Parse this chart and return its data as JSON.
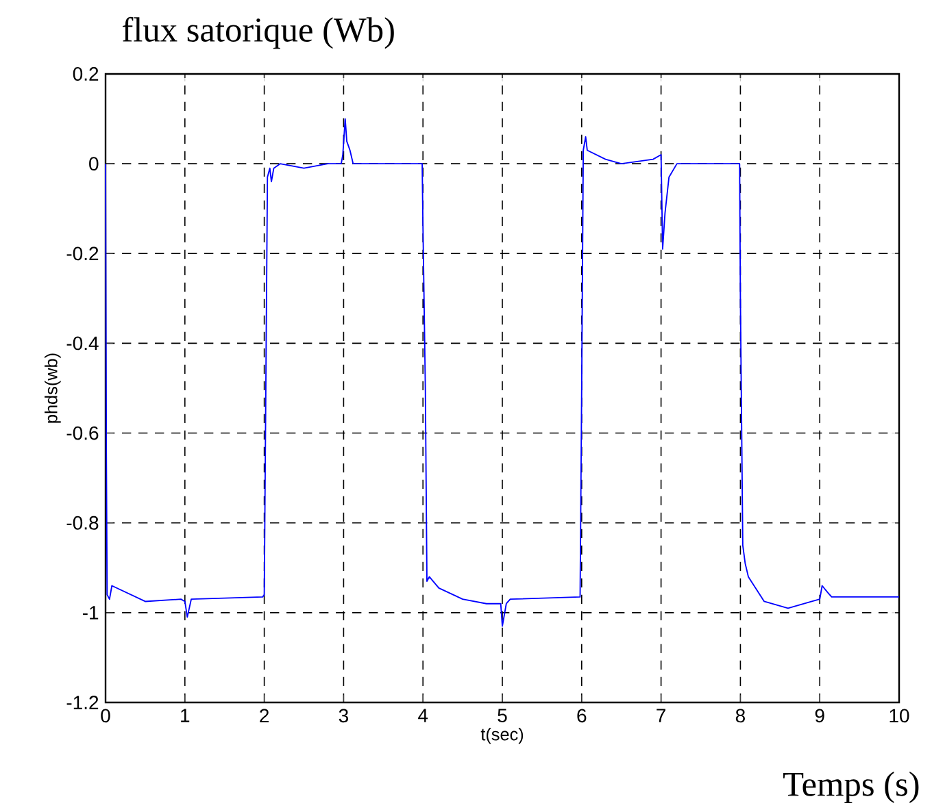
{
  "chart_data": {
    "type": "line",
    "title": "flux satorique (Wb)",
    "xlabel": "t(sec)",
    "ylabel": "phds(wb)",
    "annotations": [
      "Temps (s)"
    ],
    "xlim": [
      0,
      10
    ],
    "ylim": [
      -1.2,
      0.2
    ],
    "xticks": [
      0,
      1,
      2,
      3,
      4,
      5,
      6,
      7,
      8,
      9,
      10
    ],
    "yticks": [
      -1.2,
      -1,
      -0.8,
      -0.6,
      -0.4,
      -0.2,
      0,
      0.2
    ],
    "grid": true,
    "series": [
      {
        "color": "#0000ff",
        "x": [
          0,
          0.01,
          0.02,
          0.05,
          0.08,
          0.5,
          0.95,
          1.0,
          1.03,
          1.08,
          1.98,
          2.0,
          2.02,
          2.04,
          2.07,
          2.09,
          2.12,
          2.2,
          2.5,
          2.8,
          2.97,
          2.99,
          3.02,
          3.04,
          3.08,
          3.12,
          3.99,
          4.0,
          4.03,
          4.05,
          4.08,
          4.2,
          4.5,
          4.8,
          4.98,
          5.0,
          5.05,
          5.1,
          5.98,
          6.0,
          6.02,
          6.05,
          6.07,
          6.3,
          6.5,
          6.9,
          7.0,
          7.02,
          7.05,
          7.1,
          7.2,
          7.99,
          8.0,
          8.03,
          8.06,
          8.1,
          8.3,
          8.6,
          8.9,
          9.0,
          9.03,
          9.1,
          9.15,
          10
        ],
        "values": [
          0,
          -0.64,
          -0.96,
          -0.97,
          -0.94,
          -0.975,
          -0.97,
          -0.975,
          -1.01,
          -0.97,
          -0.965,
          -0.96,
          -0.5,
          -0.03,
          -0.01,
          -0.04,
          -0.01,
          0.0,
          -0.01,
          0.0,
          0.0,
          0.02,
          0.1,
          0.05,
          0.03,
          0.0,
          0.0,
          -0.14,
          -0.5,
          -0.93,
          -0.92,
          -0.945,
          -0.97,
          -0.98,
          -0.98,
          -1.03,
          -0.98,
          -0.97,
          -0.965,
          -0.5,
          0.03,
          0.06,
          0.03,
          0.01,
          0.0,
          0.01,
          0.02,
          -0.19,
          -0.11,
          -0.03,
          0.0,
          0.0,
          -0.3,
          -0.85,
          -0.89,
          -0.92,
          -0.975,
          -0.99,
          -0.975,
          -0.97,
          -0.94,
          -0.955,
          -0.965,
          -0.965
        ]
      }
    ]
  }
}
